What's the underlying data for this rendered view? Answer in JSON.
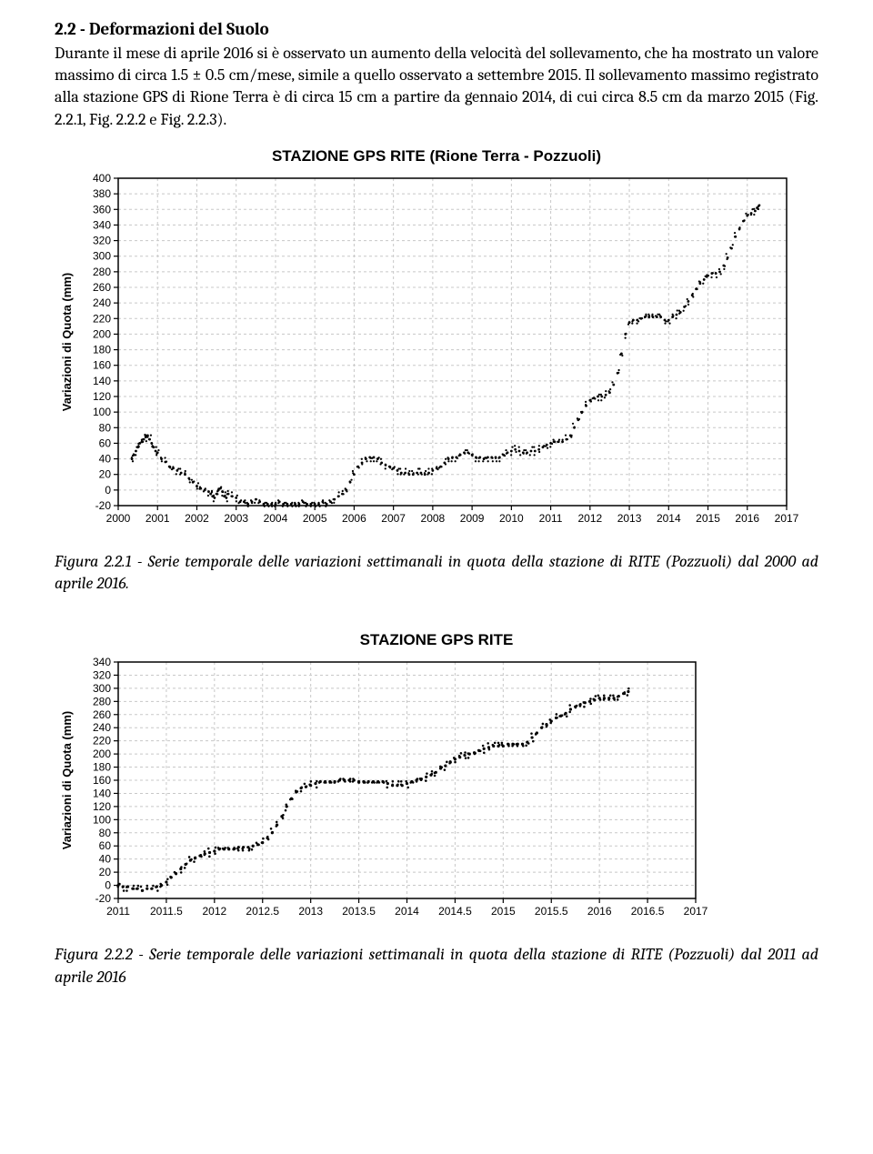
{
  "heading": "2.2 - Deformazioni del Suolo",
  "paragraph": "Durante il mese di aprile 2016 si è osservato un aumento della velocità del sollevamento, che ha mostrato un valore massimo di circa 1.5 ± 0.5 cm/mese, simile a quello osservato a settembre 2015. Il sollevamento massimo registrato alla stazione GPS di Rione Terra è di circa 15 cm a partire da gennaio 2014, di cui circa 8.5 cm da marzo 2015 (Fig. 2.2.1, Fig. 2.2.2 e Fig. 2.2.3).",
  "chart1": {
    "type": "scatter-line",
    "title": "STAZIONE GPS RITE (Rione Terra - Pozzuoli)",
    "ylabel": "Variazioni di Quota (mm)",
    "x": {
      "min": 2000,
      "max": 2017,
      "tick_step": 1
    },
    "y": {
      "min": -20,
      "max": 400,
      "tick_step": 20
    },
    "grid_color": "#c8c8c8",
    "axis_color": "#000000",
    "point_color": "#000000",
    "background": "#ffffff",
    "point_radius": 1.4,
    "scatter_jitter": 3,
    "series": [
      [
        2000.35,
        40
      ],
      [
        2000.4,
        45
      ],
      [
        2000.45,
        50
      ],
      [
        2000.5,
        55
      ],
      [
        2000.55,
        60
      ],
      [
        2000.6,
        62
      ],
      [
        2000.65,
        65
      ],
      [
        2000.7,
        68
      ],
      [
        2000.75,
        70
      ],
      [
        2000.8,
        65
      ],
      [
        2000.85,
        60
      ],
      [
        2000.9,
        55
      ],
      [
        2000.95,
        50
      ],
      [
        2001.0,
        48
      ],
      [
        2001.1,
        40
      ],
      [
        2001.2,
        36
      ],
      [
        2001.3,
        30
      ],
      [
        2001.4,
        28
      ],
      [
        2001.5,
        25
      ],
      [
        2001.6,
        22
      ],
      [
        2001.7,
        20
      ],
      [
        2001.8,
        15
      ],
      [
        2001.9,
        10
      ],
      [
        2002.0,
        5
      ],
      [
        2002.1,
        2
      ],
      [
        2002.2,
        0
      ],
      [
        2002.3,
        -2
      ],
      [
        2002.35,
        -5
      ],
      [
        2002.4,
        -8
      ],
      [
        2002.45,
        -10
      ],
      [
        2002.5,
        -5
      ],
      [
        2002.55,
        0
      ],
      [
        2002.6,
        2
      ],
      [
        2002.65,
        -2
      ],
      [
        2002.7,
        -8
      ],
      [
        2002.75,
        -10
      ],
      [
        2002.8,
        -5
      ],
      [
        2002.9,
        -8
      ],
      [
        2003.0,
        -10
      ],
      [
        2003.1,
        -15
      ],
      [
        2003.2,
        -15
      ],
      [
        2003.3,
        -18
      ],
      [
        2003.4,
        -15
      ],
      [
        2003.5,
        -12
      ],
      [
        2003.6,
        -15
      ],
      [
        2003.7,
        -18
      ],
      [
        2003.8,
        -18
      ],
      [
        2003.9,
        -18
      ],
      [
        2004.0,
        -18
      ],
      [
        2004.1,
        -15
      ],
      [
        2004.2,
        -18
      ],
      [
        2004.3,
        -18
      ],
      [
        2004.4,
        -18
      ],
      [
        2004.5,
        -18
      ],
      [
        2004.6,
        -18
      ],
      [
        2004.7,
        -15
      ],
      [
        2004.8,
        -18
      ],
      [
        2004.9,
        -18
      ],
      [
        2005.0,
        -18
      ],
      [
        2005.1,
        -18
      ],
      [
        2005.2,
        -15
      ],
      [
        2005.3,
        -18
      ],
      [
        2005.4,
        -15
      ],
      [
        2005.5,
        -12
      ],
      [
        2005.6,
        -8
      ],
      [
        2005.7,
        -5
      ],
      [
        2005.8,
        0
      ],
      [
        2005.9,
        10
      ],
      [
        2006.0,
        20
      ],
      [
        2006.1,
        30
      ],
      [
        2006.2,
        35
      ],
      [
        2006.3,
        40
      ],
      [
        2006.4,
        42
      ],
      [
        2006.5,
        42
      ],
      [
        2006.6,
        40
      ],
      [
        2006.7,
        35
      ],
      [
        2006.8,
        32
      ],
      [
        2006.9,
        30
      ],
      [
        2007.0,
        28
      ],
      [
        2007.1,
        25
      ],
      [
        2007.2,
        22
      ],
      [
        2007.3,
        22
      ],
      [
        2007.4,
        20
      ],
      [
        2007.5,
        20
      ],
      [
        2007.6,
        22
      ],
      [
        2007.7,
        22
      ],
      [
        2007.8,
        20
      ],
      [
        2007.9,
        22
      ],
      [
        2008.0,
        25
      ],
      [
        2008.1,
        28
      ],
      [
        2008.2,
        30
      ],
      [
        2008.3,
        35
      ],
      [
        2008.4,
        40
      ],
      [
        2008.5,
        42
      ],
      [
        2008.6,
        42
      ],
      [
        2008.7,
        45
      ],
      [
        2008.8,
        48
      ],
      [
        2008.9,
        48
      ],
      [
        2009.0,
        45
      ],
      [
        2009.1,
        42
      ],
      [
        2009.2,
        42
      ],
      [
        2009.3,
        40
      ],
      [
        2009.4,
        42
      ],
      [
        2009.5,
        42
      ],
      [
        2009.6,
        42
      ],
      [
        2009.7,
        42
      ],
      [
        2009.8,
        45
      ],
      [
        2009.9,
        48
      ],
      [
        2010.0,
        50
      ],
      [
        2010.1,
        52
      ],
      [
        2010.2,
        50
      ],
      [
        2010.3,
        48
      ],
      [
        2010.4,
        48
      ],
      [
        2010.5,
        50
      ],
      [
        2010.6,
        50
      ],
      [
        2010.7,
        52
      ],
      [
        2010.8,
        55
      ],
      [
        2010.9,
        58
      ],
      [
        2011.0,
        60
      ],
      [
        2011.1,
        62
      ],
      [
        2011.2,
        62
      ],
      [
        2011.3,
        62
      ],
      [
        2011.4,
        65
      ],
      [
        2011.5,
        70
      ],
      [
        2011.6,
        80
      ],
      [
        2011.7,
        90
      ],
      [
        2011.8,
        100
      ],
      [
        2011.9,
        108
      ],
      [
        2012.0,
        115
      ],
      [
        2012.1,
        118
      ],
      [
        2012.2,
        120
      ],
      [
        2012.3,
        120
      ],
      [
        2012.4,
        122
      ],
      [
        2012.5,
        125
      ],
      [
        2012.6,
        135
      ],
      [
        2012.7,
        150
      ],
      [
        2012.8,
        175
      ],
      [
        2012.9,
        200
      ],
      [
        2013.0,
        215
      ],
      [
        2013.1,
        218
      ],
      [
        2013.2,
        218
      ],
      [
        2013.3,
        220
      ],
      [
        2013.4,
        222
      ],
      [
        2013.5,
        222
      ],
      [
        2013.6,
        222
      ],
      [
        2013.7,
        222
      ],
      [
        2013.8,
        222
      ],
      [
        2013.9,
        218
      ],
      [
        2014.0,
        218
      ],
      [
        2014.1,
        222
      ],
      [
        2014.2,
        225
      ],
      [
        2014.3,
        228
      ],
      [
        2014.4,
        235
      ],
      [
        2014.5,
        242
      ],
      [
        2014.6,
        250
      ],
      [
        2014.7,
        258
      ],
      [
        2014.8,
        265
      ],
      [
        2014.9,
        270
      ],
      [
        2015.0,
        275
      ],
      [
        2015.1,
        278
      ],
      [
        2015.2,
        278
      ],
      [
        2015.3,
        280
      ],
      [
        2015.4,
        288
      ],
      [
        2015.5,
        298
      ],
      [
        2015.6,
        310
      ],
      [
        2015.7,
        325
      ],
      [
        2015.8,
        335
      ],
      [
        2015.9,
        345
      ],
      [
        2016.0,
        352
      ],
      [
        2016.1,
        355
      ],
      [
        2016.2,
        358
      ],
      [
        2016.25,
        362
      ],
      [
        2016.3,
        365
      ]
    ]
  },
  "caption1": "Figura 2.2.1 - Serie temporale delle variazioni settimanali in quota della stazione di RITE (Pozzuoli) dal 2000 ad aprile 2016.",
  "chart2": {
    "type": "scatter-line",
    "title": "STAZIONE GPS RITE",
    "ylabel": "Variazioni di Quota (mm)",
    "x": {
      "min": 2011,
      "max": 2017,
      "tick_step": 0.5,
      "tick_labels": [
        "2011",
        "2011.5",
        "2012",
        "2012.5",
        "2013",
        "2013.5",
        "2014",
        "2014.5",
        "2015",
        "2015.5",
        "2016",
        "2016.5",
        "2017"
      ]
    },
    "y": {
      "min": -20,
      "max": 340,
      "tick_step": 20
    },
    "grid_color": "#c8c8c8",
    "axis_color": "#000000",
    "point_color": "#000000",
    "background": "#ffffff",
    "point_radius": 1.6,
    "scatter_jitter": 3,
    "series": [
      [
        2011.0,
        0
      ],
      [
        2011.05,
        -2
      ],
      [
        2011.1,
        -2
      ],
      [
        2011.15,
        -5
      ],
      [
        2011.2,
        -5
      ],
      [
        2011.25,
        -8
      ],
      [
        2011.3,
        -5
      ],
      [
        2011.35,
        -5
      ],
      [
        2011.4,
        -2
      ],
      [
        2011.45,
        0
      ],
      [
        2011.5,
        5
      ],
      [
        2011.55,
        12
      ],
      [
        2011.6,
        18
      ],
      [
        2011.65,
        25
      ],
      [
        2011.7,
        32
      ],
      [
        2011.75,
        38
      ],
      [
        2011.8,
        42
      ],
      [
        2011.85,
        45
      ],
      [
        2011.9,
        48
      ],
      [
        2011.95,
        50
      ],
      [
        2012.0,
        52
      ],
      [
        2012.05,
        55
      ],
      [
        2012.1,
        55
      ],
      [
        2012.15,
        55
      ],
      [
        2012.2,
        55
      ],
      [
        2012.25,
        58
      ],
      [
        2012.3,
        58
      ],
      [
        2012.35,
        58
      ],
      [
        2012.4,
        60
      ],
      [
        2012.45,
        62
      ],
      [
        2012.5,
        65
      ],
      [
        2012.55,
        72
      ],
      [
        2012.6,
        80
      ],
      [
        2012.65,
        92
      ],
      [
        2012.7,
        105
      ],
      [
        2012.75,
        120
      ],
      [
        2012.8,
        132
      ],
      [
        2012.85,
        142
      ],
      [
        2012.9,
        148
      ],
      [
        2012.95,
        150
      ],
      [
        2013.0,
        152
      ],
      [
        2013.05,
        155
      ],
      [
        2013.1,
        158
      ],
      [
        2013.15,
        158
      ],
      [
        2013.2,
        158
      ],
      [
        2013.25,
        158
      ],
      [
        2013.3,
        160
      ],
      [
        2013.35,
        160
      ],
      [
        2013.4,
        160
      ],
      [
        2013.45,
        160
      ],
      [
        2013.5,
        158
      ],
      [
        2013.55,
        158
      ],
      [
        2013.6,
        158
      ],
      [
        2013.65,
        158
      ],
      [
        2013.7,
        158
      ],
      [
        2013.75,
        158
      ],
      [
        2013.8,
        155
      ],
      [
        2013.85,
        152
      ],
      [
        2013.9,
        152
      ],
      [
        2013.95,
        152
      ],
      [
        2014.0,
        155
      ],
      [
        2014.05,
        158
      ],
      [
        2014.1,
        160
      ],
      [
        2014.15,
        162
      ],
      [
        2014.2,
        165
      ],
      [
        2014.25,
        168
      ],
      [
        2014.3,
        172
      ],
      [
        2014.35,
        178
      ],
      [
        2014.4,
        182
      ],
      [
        2014.45,
        188
      ],
      [
        2014.5,
        192
      ],
      [
        2014.55,
        195
      ],
      [
        2014.6,
        198
      ],
      [
        2014.65,
        200
      ],
      [
        2014.7,
        202
      ],
      [
        2014.75,
        205
      ],
      [
        2014.8,
        208
      ],
      [
        2014.85,
        210
      ],
      [
        2014.9,
        212
      ],
      [
        2014.95,
        212
      ],
      [
        2015.0,
        212
      ],
      [
        2015.05,
        215
      ],
      [
        2015.1,
        215
      ],
      [
        2015.15,
        215
      ],
      [
        2015.2,
        215
      ],
      [
        2015.25,
        218
      ],
      [
        2015.3,
        225
      ],
      [
        2015.35,
        232
      ],
      [
        2015.4,
        240
      ],
      [
        2015.45,
        245
      ],
      [
        2015.5,
        250
      ],
      [
        2015.55,
        255
      ],
      [
        2015.6,
        258
      ],
      [
        2015.65,
        262
      ],
      [
        2015.7,
        268
      ],
      [
        2015.75,
        272
      ],
      [
        2015.8,
        275
      ],
      [
        2015.85,
        278
      ],
      [
        2015.9,
        280
      ],
      [
        2015.95,
        282
      ],
      [
        2016.0,
        285
      ],
      [
        2016.05,
        285
      ],
      [
        2016.1,
        285
      ],
      [
        2016.15,
        285
      ],
      [
        2016.2,
        288
      ],
      [
        2016.25,
        292
      ],
      [
        2016.3,
        295
      ]
    ]
  },
  "caption2": "Figura 2.2.2 - Serie temporale delle variazioni settimanali in quota della stazione di RITE (Pozzuoli) dal 2011 ad aprile 2016"
}
